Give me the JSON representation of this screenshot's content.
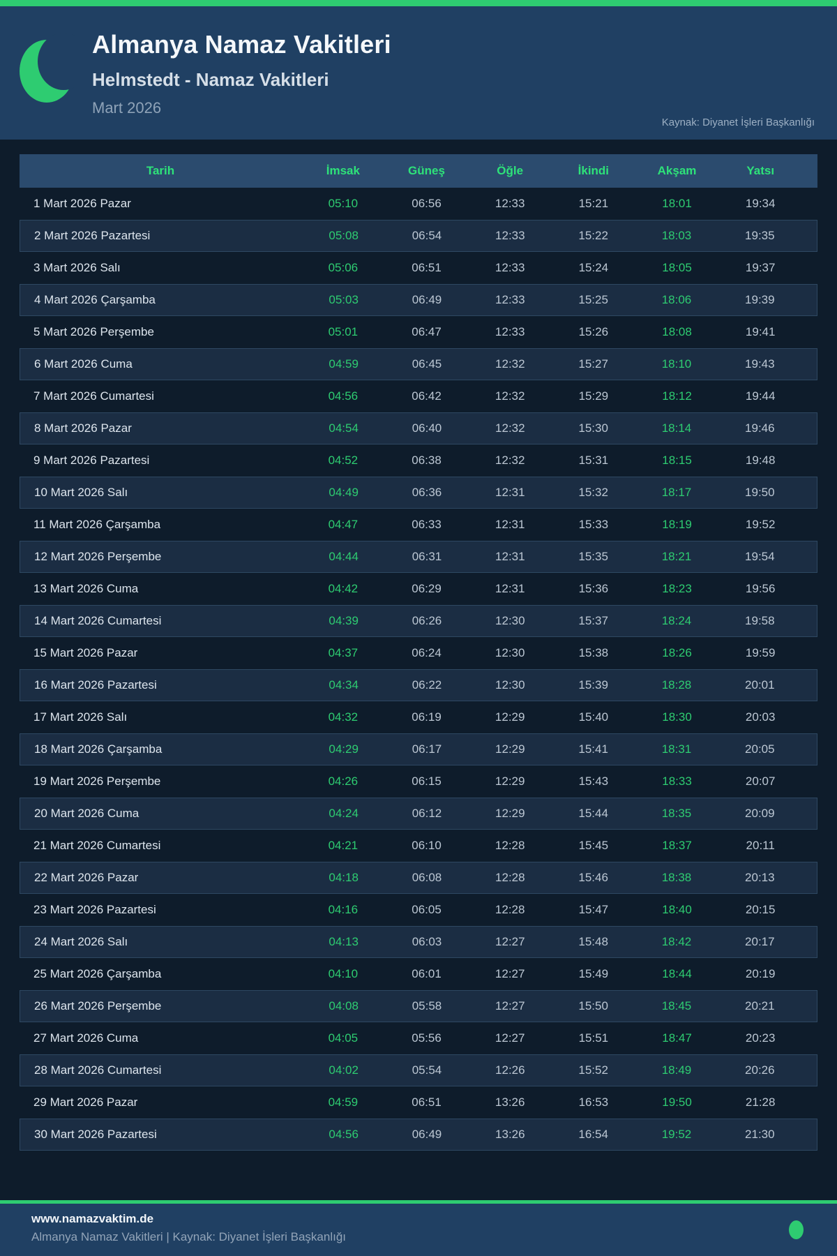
{
  "colors": {
    "accent_green": "#2ecc71",
    "header_bg": "#204063",
    "page_bg": "#0e1c2b",
    "table_header_bg": "#2b4b6e",
    "row_alt_bg": "#1b2d43"
  },
  "header": {
    "title": "Almanya Namaz Vakitleri",
    "subtitle": "Helmstedt - Namaz Vakitleri",
    "month": "Mart 2026",
    "source": "Kaynak: Diyanet İşleri Başkanlığı",
    "moon_icon": "crescent-moon"
  },
  "table": {
    "columns": [
      "Tarih",
      "İmsak",
      "Güneş",
      "Öğle",
      "İkindi",
      "Akşam",
      "Yatsı"
    ],
    "green_time_columns": [
      "İmsak",
      "Akşam"
    ],
    "rows": [
      {
        "date": "1 Mart 2026 Pazar",
        "times": [
          "05:10",
          "06:56",
          "12:33",
          "15:21",
          "18:01",
          "19:34"
        ]
      },
      {
        "date": "2 Mart 2026 Pazartesi",
        "times": [
          "05:08",
          "06:54",
          "12:33",
          "15:22",
          "18:03",
          "19:35"
        ]
      },
      {
        "date": "3 Mart 2026 Salı",
        "times": [
          "05:06",
          "06:51",
          "12:33",
          "15:24",
          "18:05",
          "19:37"
        ]
      },
      {
        "date": "4 Mart 2026 Çarşamba",
        "times": [
          "05:03",
          "06:49",
          "12:33",
          "15:25",
          "18:06",
          "19:39"
        ]
      },
      {
        "date": "5 Mart 2026 Perşembe",
        "times": [
          "05:01",
          "06:47",
          "12:33",
          "15:26",
          "18:08",
          "19:41"
        ]
      },
      {
        "date": "6 Mart 2026 Cuma",
        "times": [
          "04:59",
          "06:45",
          "12:32",
          "15:27",
          "18:10",
          "19:43"
        ]
      },
      {
        "date": "7 Mart 2026 Cumartesi",
        "times": [
          "04:56",
          "06:42",
          "12:32",
          "15:29",
          "18:12",
          "19:44"
        ]
      },
      {
        "date": "8 Mart 2026 Pazar",
        "times": [
          "04:54",
          "06:40",
          "12:32",
          "15:30",
          "18:14",
          "19:46"
        ]
      },
      {
        "date": "9 Mart 2026 Pazartesi",
        "times": [
          "04:52",
          "06:38",
          "12:32",
          "15:31",
          "18:15",
          "19:48"
        ]
      },
      {
        "date": "10 Mart 2026 Salı",
        "times": [
          "04:49",
          "06:36",
          "12:31",
          "15:32",
          "18:17",
          "19:50"
        ]
      },
      {
        "date": "11 Mart 2026 Çarşamba",
        "times": [
          "04:47",
          "06:33",
          "12:31",
          "15:33",
          "18:19",
          "19:52"
        ]
      },
      {
        "date": "12 Mart 2026 Perşembe",
        "times": [
          "04:44",
          "06:31",
          "12:31",
          "15:35",
          "18:21",
          "19:54"
        ]
      },
      {
        "date": "13 Mart 2026 Cuma",
        "times": [
          "04:42",
          "06:29",
          "12:31",
          "15:36",
          "18:23",
          "19:56"
        ]
      },
      {
        "date": "14 Mart 2026 Cumartesi",
        "times": [
          "04:39",
          "06:26",
          "12:30",
          "15:37",
          "18:24",
          "19:58"
        ]
      },
      {
        "date": "15 Mart 2026 Pazar",
        "times": [
          "04:37",
          "06:24",
          "12:30",
          "15:38",
          "18:26",
          "19:59"
        ]
      },
      {
        "date": "16 Mart 2026 Pazartesi",
        "times": [
          "04:34",
          "06:22",
          "12:30",
          "15:39",
          "18:28",
          "20:01"
        ]
      },
      {
        "date": "17 Mart 2026 Salı",
        "times": [
          "04:32",
          "06:19",
          "12:29",
          "15:40",
          "18:30",
          "20:03"
        ]
      },
      {
        "date": "18 Mart 2026 Çarşamba",
        "times": [
          "04:29",
          "06:17",
          "12:29",
          "15:41",
          "18:31",
          "20:05"
        ]
      },
      {
        "date": "19 Mart 2026 Perşembe",
        "times": [
          "04:26",
          "06:15",
          "12:29",
          "15:43",
          "18:33",
          "20:07"
        ]
      },
      {
        "date": "20 Mart 2026 Cuma",
        "times": [
          "04:24",
          "06:12",
          "12:29",
          "15:44",
          "18:35",
          "20:09"
        ]
      },
      {
        "date": "21 Mart 2026 Cumartesi",
        "times": [
          "04:21",
          "06:10",
          "12:28",
          "15:45",
          "18:37",
          "20:11"
        ]
      },
      {
        "date": "22 Mart 2026 Pazar",
        "times": [
          "04:18",
          "06:08",
          "12:28",
          "15:46",
          "18:38",
          "20:13"
        ]
      },
      {
        "date": "23 Mart 2026 Pazartesi",
        "times": [
          "04:16",
          "06:05",
          "12:28",
          "15:47",
          "18:40",
          "20:15"
        ]
      },
      {
        "date": "24 Mart 2026 Salı",
        "times": [
          "04:13",
          "06:03",
          "12:27",
          "15:48",
          "18:42",
          "20:17"
        ]
      },
      {
        "date": "25 Mart 2026 Çarşamba",
        "times": [
          "04:10",
          "06:01",
          "12:27",
          "15:49",
          "18:44",
          "20:19"
        ]
      },
      {
        "date": "26 Mart 2026 Perşembe",
        "times": [
          "04:08",
          "05:58",
          "12:27",
          "15:50",
          "18:45",
          "20:21"
        ]
      },
      {
        "date": "27 Mart 2026 Cuma",
        "times": [
          "04:05",
          "05:56",
          "12:27",
          "15:51",
          "18:47",
          "20:23"
        ]
      },
      {
        "date": "28 Mart 2026 Cumartesi",
        "times": [
          "04:02",
          "05:54",
          "12:26",
          "15:52",
          "18:49",
          "20:26"
        ]
      },
      {
        "date": "29 Mart 2026 Pazar",
        "times": [
          "04:59",
          "06:51",
          "13:26",
          "16:53",
          "19:50",
          "21:28"
        ]
      },
      {
        "date": "30 Mart 2026 Pazartesi",
        "times": [
          "04:56",
          "06:49",
          "13:26",
          "16:54",
          "19:52",
          "21:30"
        ]
      }
    ]
  },
  "footer": {
    "site": "www.namazvaktim.de",
    "tagline": "Almanya Namaz Vakitleri | Kaynak: Diyanet İşleri Başkanlığı"
  }
}
